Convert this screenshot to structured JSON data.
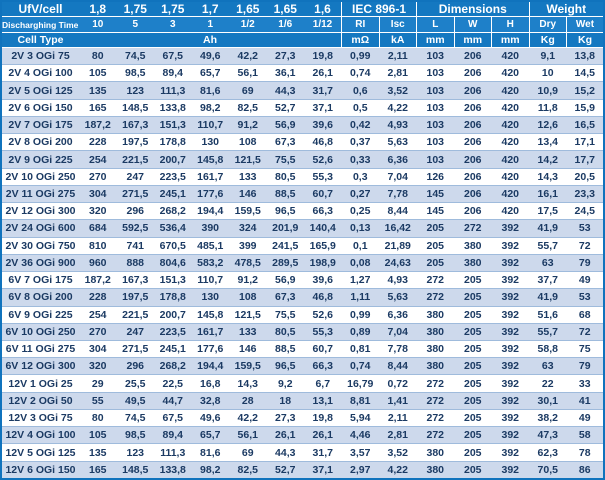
{
  "colors": {
    "header_blue": "#1478c1",
    "header_blue_light": "#1e80c9",
    "row_alt_blue": "#cdd9ec",
    "row_white": "#ffffff",
    "text_navy": "#1b3a63",
    "grid_line": "#9fbbdc",
    "outer_border": "#1073bd"
  },
  "table": {
    "header": {
      "ufv_label": "UfV/cell",
      "ufv_values": [
        "1,8",
        "1,75",
        "1,75",
        "1,7",
        "1,65",
        "1,65",
        "1,6"
      ],
      "groups": [
        "IEC 896-1",
        "Dimensions",
        "Weight"
      ],
      "time_label": "Discharghing Time h",
      "time_values": [
        "10",
        "5",
        "3",
        "1",
        "1/2",
        "1/6",
        "1/12"
      ],
      "col_headers": [
        "RI",
        "Isc",
        "L",
        "W",
        "H",
        "Dry",
        "Wet"
      ],
      "cell_type_label": "Cell Type",
      "ah_label": "Ah",
      "units": [
        "mΩ",
        "kA",
        "mm",
        "mm",
        "mm",
        "Kg",
        "Kg"
      ]
    },
    "rows": [
      [
        "2V 3 OGi 75",
        "80",
        "74,5",
        "67,5",
        "49,6",
        "42,2",
        "27,3",
        "19,8",
        "0,99",
        "2,11",
        "103",
        "206",
        "420",
        "9,1",
        "13,8"
      ],
      [
        "2V 4 OGi 100",
        "105",
        "98,5",
        "89,4",
        "65,7",
        "56,1",
        "36,1",
        "26,1",
        "0,74",
        "2,81",
        "103",
        "206",
        "420",
        "10",
        "14,5"
      ],
      [
        "2V 5 OGi 125",
        "135",
        "123",
        "111,3",
        "81,6",
        "69",
        "44,3",
        "31,7",
        "0,6",
        "3,52",
        "103",
        "206",
        "420",
        "10,9",
        "15,2"
      ],
      [
        "2V 6 OGi 150",
        "165",
        "148,5",
        "133,8",
        "98,2",
        "82,5",
        "52,7",
        "37,1",
        "0,5",
        "4,22",
        "103",
        "206",
        "420",
        "11,8",
        "15,9"
      ],
      [
        "2V 7 OGi 175",
        "187,2",
        "167,3",
        "151,3",
        "110,7",
        "91,2",
        "56,9",
        "39,6",
        "0,42",
        "4,93",
        "103",
        "206",
        "420",
        "12,6",
        "16,5"
      ],
      [
        "2V 8 OGi 200",
        "228",
        "197,5",
        "178,8",
        "130",
        "108",
        "67,3",
        "46,8",
        "0,37",
        "5,63",
        "103",
        "206",
        "420",
        "13,4",
        "17,1"
      ],
      [
        "2V 9 OGi 225",
        "254",
        "221,5",
        "200,7",
        "145,8",
        "121,5",
        "75,5",
        "52,6",
        "0,33",
        "6,36",
        "103",
        "206",
        "420",
        "14,2",
        "17,7"
      ],
      [
        "2V 10 OGi 250",
        "270",
        "247",
        "223,5",
        "161,7",
        "133",
        "80,5",
        "55,3",
        "0,3",
        "7,04",
        "126",
        "206",
        "420",
        "14,3",
        "20,5"
      ],
      [
        "2V 11 OGi 275",
        "304",
        "271,5",
        "245,1",
        "177,6",
        "146",
        "88,5",
        "60,7",
        "0,27",
        "7,78",
        "145",
        "206",
        "420",
        "16,1",
        "23,3"
      ],
      [
        "2V 12 OGi 300",
        "320",
        "296",
        "268,2",
        "194,4",
        "159,5",
        "96,5",
        "66,3",
        "0,25",
        "8,44",
        "145",
        "206",
        "420",
        "17,5",
        "24,5"
      ],
      [
        "2V 24 OGi 600",
        "684",
        "592,5",
        "536,4",
        "390",
        "324",
        "201,9",
        "140,4",
        "0,13",
        "16,42",
        "205",
        "272",
        "392",
        "41,9",
        "53"
      ],
      [
        "2V 30 OGi 750",
        "810",
        "741",
        "670,5",
        "485,1",
        "399",
        "241,5",
        "165,9",
        "0,1",
        "21,89",
        "205",
        "380",
        "392",
        "55,7",
        "72"
      ],
      [
        "2V 36 OGi 900",
        "960",
        "888",
        "804,6",
        "583,2",
        "478,5",
        "289,5",
        "198,9",
        "0,08",
        "24,63",
        "205",
        "380",
        "392",
        "63",
        "79"
      ],
      [
        "6V 7 OGi 175",
        "187,2",
        "167,3",
        "151,3",
        "110,7",
        "91,2",
        "56,9",
        "39,6",
        "1,27",
        "4,93",
        "272",
        "205",
        "392",
        "37,7",
        "49"
      ],
      [
        "6V 8 OGi 200",
        "228",
        "197,5",
        "178,8",
        "130",
        "108",
        "67,3",
        "46,8",
        "1,11",
        "5,63",
        "272",
        "205",
        "392",
        "41,9",
        "53"
      ],
      [
        "6V 9 OGi 225",
        "254",
        "221,5",
        "200,7",
        "145,8",
        "121,5",
        "75,5",
        "52,6",
        "0,99",
        "6,36",
        "380",
        "205",
        "392",
        "51,6",
        "68"
      ],
      [
        "6V 10 OGi 250",
        "270",
        "247",
        "223,5",
        "161,7",
        "133",
        "80,5",
        "55,3",
        "0,89",
        "7,04",
        "380",
        "205",
        "392",
        "55,7",
        "72"
      ],
      [
        "6V 11 OGi 275",
        "304",
        "271,5",
        "245,1",
        "177,6",
        "146",
        "88,5",
        "60,7",
        "0,81",
        "7,78",
        "380",
        "205",
        "392",
        "58,8",
        "75"
      ],
      [
        "6V 12 OGi 300",
        "320",
        "296",
        "268,2",
        "194,4",
        "159,5",
        "96,5",
        "66,3",
        "0,74",
        "8,44",
        "380",
        "205",
        "392",
        "63",
        "79"
      ],
      [
        "12V 1 OGi 25",
        "29",
        "25,5",
        "22,5",
        "16,8",
        "14,3",
        "9,2",
        "6,7",
        "16,79",
        "0,72",
        "272",
        "205",
        "392",
        "22",
        "33"
      ],
      [
        "12V 2 OGi 50",
        "55",
        "49,5",
        "44,7",
        "32,8",
        "28",
        "18",
        "13,1",
        "8,81",
        "1,41",
        "272",
        "205",
        "392",
        "30,1",
        "41"
      ],
      [
        "12V 3 OGi 75",
        "80",
        "74,5",
        "67,5",
        "49,6",
        "42,2",
        "27,3",
        "19,8",
        "5,94",
        "2,11",
        "272",
        "205",
        "392",
        "38,2",
        "49"
      ],
      [
        "12V 4 OGi 100",
        "105",
        "98,5",
        "89,4",
        "65,7",
        "56,1",
        "26,1",
        "26,1",
        "4,46",
        "2,81",
        "272",
        "205",
        "392",
        "47,3",
        "58"
      ],
      [
        "12V 5 OGi 125",
        "135",
        "123",
        "111,3",
        "81,6",
        "69",
        "44,3",
        "31,7",
        "3,57",
        "3,52",
        "380",
        "205",
        "392",
        "62,3",
        "78"
      ],
      [
        "12V 6 OGi 150",
        "165",
        "148,5",
        "133,8",
        "98,2",
        "82,5",
        "52,7",
        "37,1",
        "2,97",
        "4,22",
        "380",
        "205",
        "392",
        "70,5",
        "86"
      ]
    ]
  }
}
